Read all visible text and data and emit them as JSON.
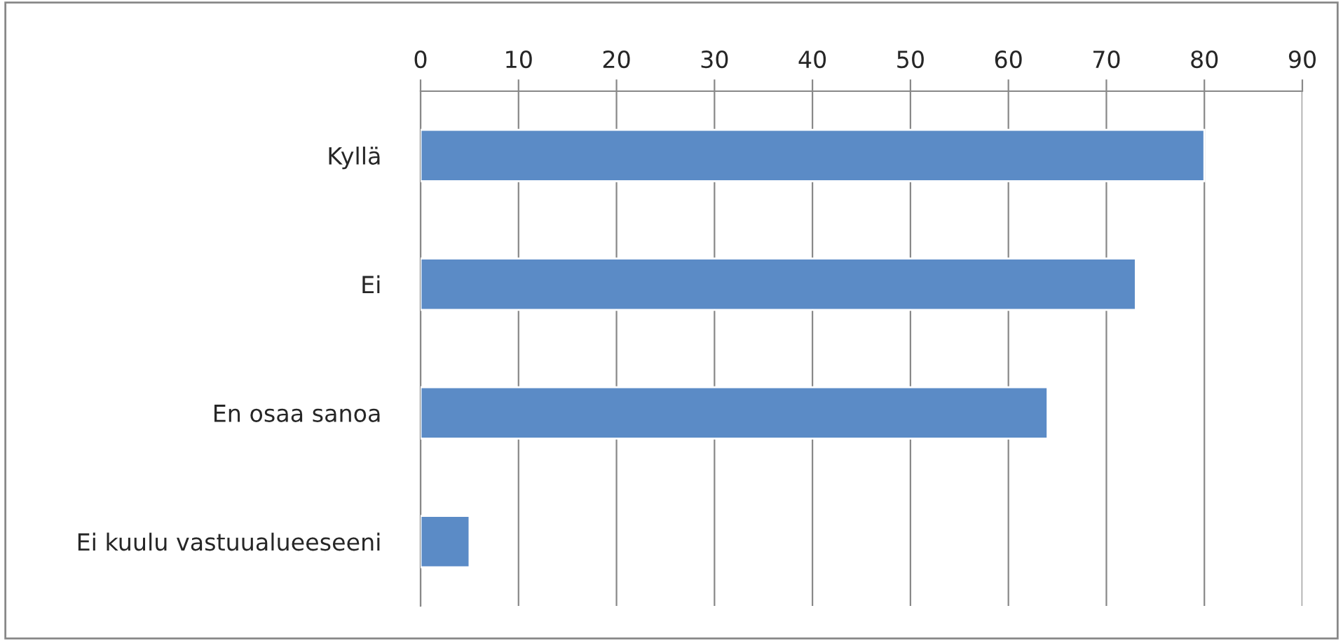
{
  "chart_data": {
    "type": "bar",
    "orientation": "horizontal",
    "categories": [
      "Kyllä",
      "Ei",
      "En osaa sanoa",
      "Ei kuulu vastuualueeseeni"
    ],
    "values": [
      80,
      73,
      64,
      5
    ],
    "color": "#5b8bc6",
    "xlim": [
      0,
      90
    ],
    "xticks": [
      0,
      10,
      20,
      30,
      40,
      50,
      60,
      70,
      80,
      90
    ],
    "grid": "x"
  }
}
